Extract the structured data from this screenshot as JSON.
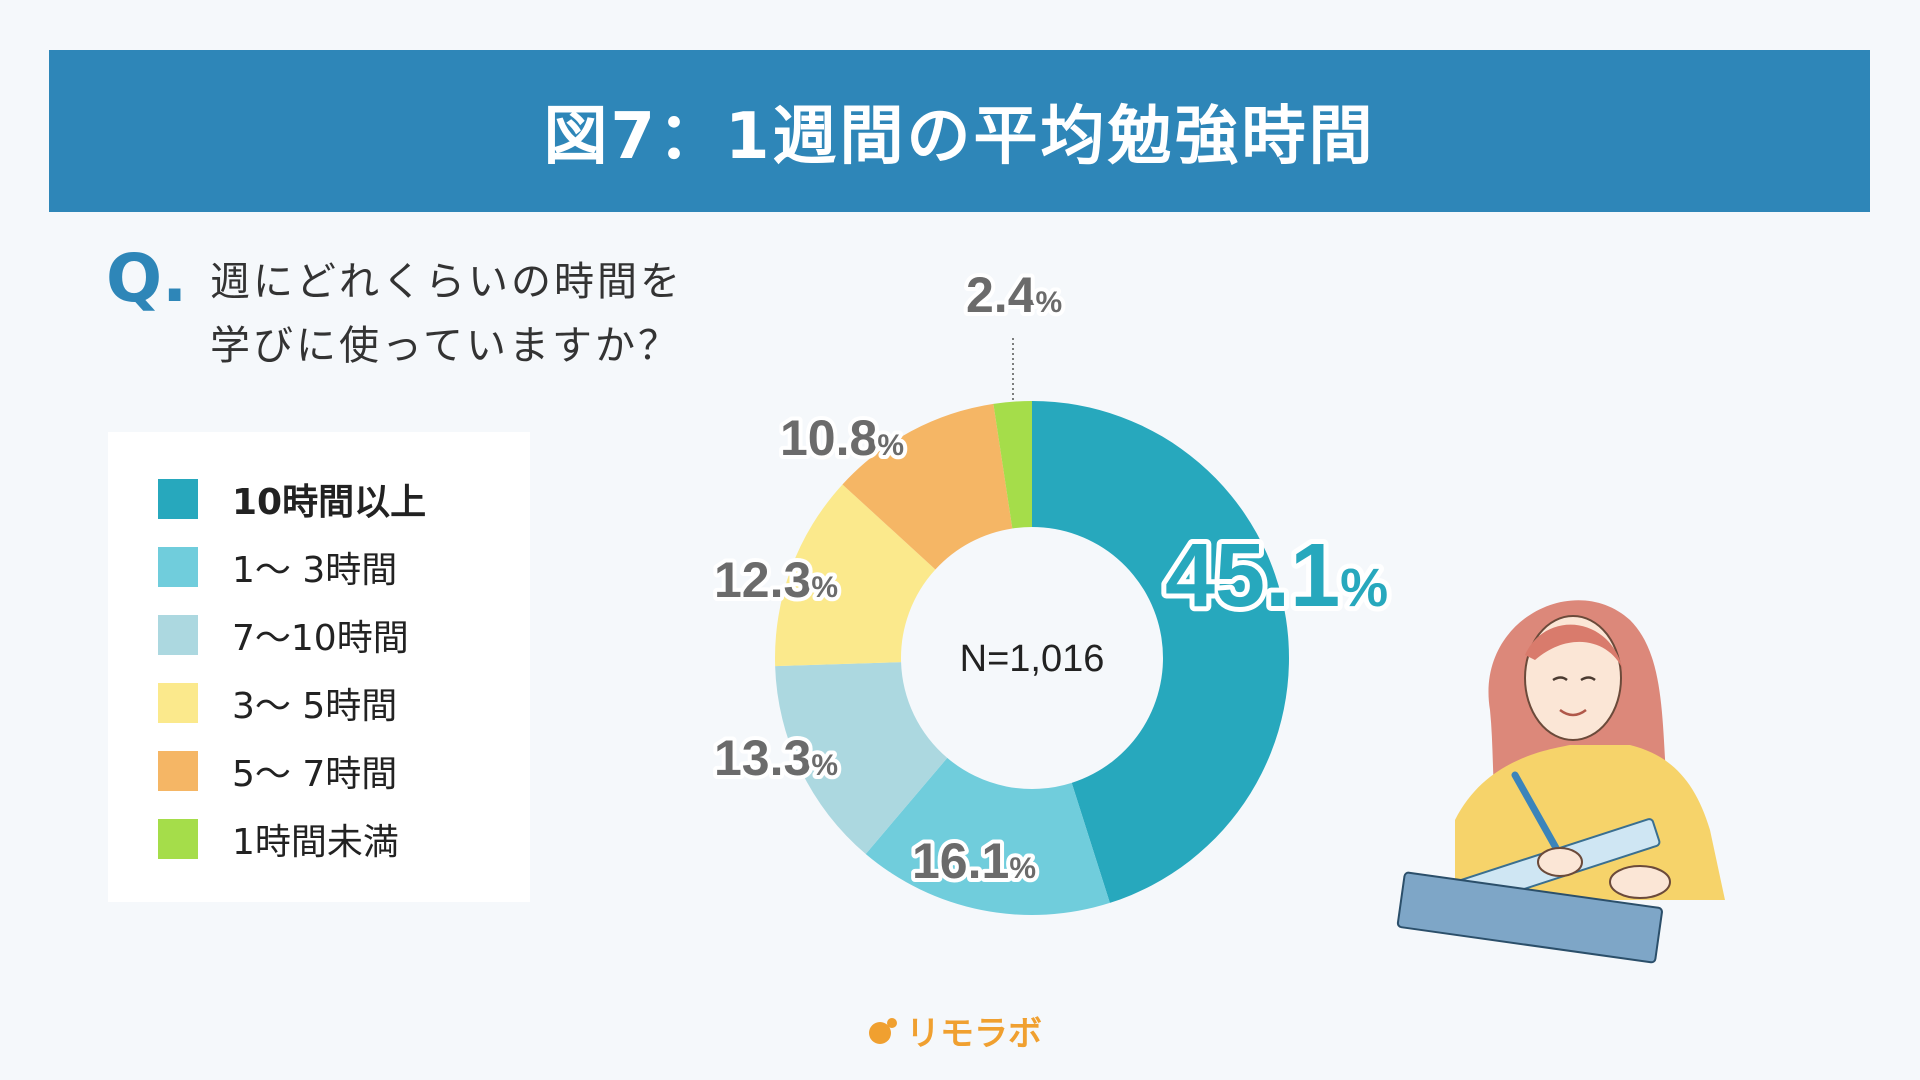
{
  "header": {
    "title": "図7：1週間の平均勉強時間"
  },
  "question": {
    "mark": "Q.",
    "line1": "週にどれくらいの時間を",
    "line2": "学びに使っていますか？"
  },
  "brand": {
    "name": "リモラボ"
  },
  "chart_data": {
    "type": "pie",
    "center_label": "N=1,016",
    "unit": "%",
    "series": [
      {
        "name": "10時間以上",
        "value": 45.1,
        "label": "45.1",
        "color": "#27a8bd"
      },
      {
        "name": "1〜 3時間",
        "value": 16.1,
        "label": "16.1",
        "color": "#70cddc"
      },
      {
        "name": "7〜10時間",
        "value": 13.3,
        "label": "13.3",
        "color": "#acd8e0"
      },
      {
        "name": "3〜 5時間",
        "value": 12.3,
        "label": "12.3",
        "color": "#fbe98c"
      },
      {
        "name": "5〜 7時間",
        "value": 10.8,
        "label": "10.8",
        "color": "#f5b665"
      },
      {
        "name": "1時間未満",
        "value": 2.4,
        "label": "2.4",
        "color": "#a5dd4a"
      }
    ],
    "legend": [
      {
        "label": "10時間以上",
        "color": "#27a8bd"
      },
      {
        "label": "1〜 3時間",
        "color": "#70cddc"
      },
      {
        "label": "7〜10時間",
        "color": "#acd8e0"
      },
      {
        "label": "3〜 5時間",
        "color": "#fbe98c"
      },
      {
        "label": "5〜 7時間",
        "color": "#f5b665"
      },
      {
        "label": "1時間未満",
        "color": "#a5dd4a"
      }
    ]
  }
}
